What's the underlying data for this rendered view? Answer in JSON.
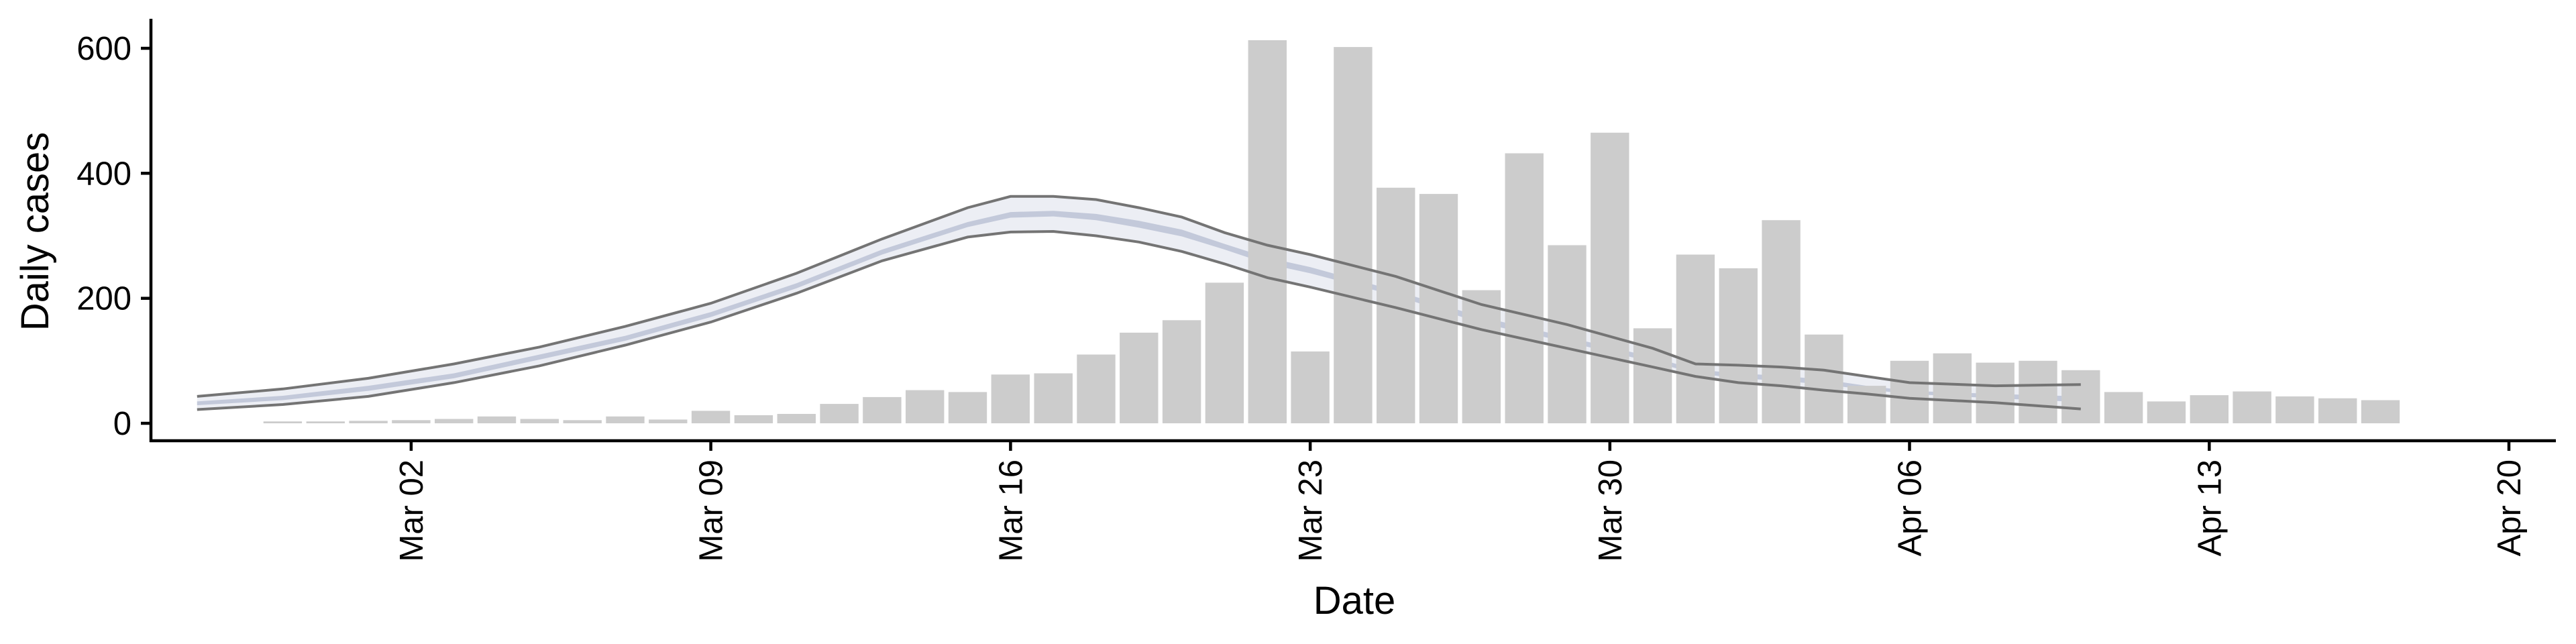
{
  "chart_data": {
    "type": "bar",
    "title": "",
    "xlabel": "Date",
    "ylabel": "Daily cases",
    "ylim": [
      0,
      640
    ],
    "xlim": [
      "2020-02-25",
      "2020-04-20"
    ],
    "x_ticks": [
      "2020-03-02",
      "2020-03-09",
      "2020-03-16",
      "2020-03-23",
      "2020-03-30",
      "2020-04-06",
      "2020-04-13",
      "2020-04-20"
    ],
    "x_tick_labels": [
      "Mar 02",
      "Mar 09",
      "Mar 16",
      "Mar 23",
      "Mar 30",
      "Apr 06",
      "Apr 13",
      "Apr 20"
    ],
    "y_ticks": [
      0,
      200,
      400,
      600
    ],
    "y_tick_labels": [
      "0",
      "200",
      "400",
      "600"
    ],
    "grid": false,
    "legend": "none",
    "colors": {
      "bars": "#cccccc",
      "band_outer": "#eceef4",
      "band_inner": "#c3c9da",
      "bound_lines": "#747474"
    },
    "series": [
      {
        "kind": "bar",
        "x": [
          "2020-02-28",
          "2020-02-29",
          "2020-03-01",
          "2020-03-02",
          "2020-03-03",
          "2020-03-04",
          "2020-03-05",
          "2020-03-06",
          "2020-03-07",
          "2020-03-08",
          "2020-03-09",
          "2020-03-10",
          "2020-03-11",
          "2020-03-12",
          "2020-03-13",
          "2020-03-14",
          "2020-03-15",
          "2020-03-16",
          "2020-03-17",
          "2020-03-18",
          "2020-03-19",
          "2020-03-20",
          "2020-03-21",
          "2020-03-22",
          "2020-03-23",
          "2020-03-24",
          "2020-03-25",
          "2020-03-26",
          "2020-03-27",
          "2020-03-28",
          "2020-03-29",
          "2020-03-30",
          "2020-03-31",
          "2020-04-01",
          "2020-04-02",
          "2020-04-03",
          "2020-04-04",
          "2020-04-05",
          "2020-04-06",
          "2020-04-07",
          "2020-04-08",
          "2020-04-09",
          "2020-04-10",
          "2020-04-11",
          "2020-04-12",
          "2020-04-13",
          "2020-04-14",
          "2020-04-15",
          "2020-04-16",
          "2020-04-17",
          "2020-04-18"
        ],
        "values": [
          3,
          3,
          4,
          5,
          7,
          11,
          7,
          5,
          11,
          6,
          20,
          13,
          15,
          31,
          42,
          53,
          50,
          78,
          80,
          110,
          145,
          165,
          225,
          613,
          115,
          602,
          377,
          367,
          213,
          432,
          285,
          465,
          152,
          270,
          248,
          325,
          142,
          60,
          100,
          112,
          97,
          100,
          85,
          50,
          35,
          45,
          51,
          43,
          40,
          37,
          0
        ]
      },
      {
        "kind": "band",
        "x": [
          "2020-02-26",
          "2020-02-28",
          "2020-03-01",
          "2020-03-03",
          "2020-03-05",
          "2020-03-07",
          "2020-03-09",
          "2020-03-11",
          "2020-03-13",
          "2020-03-15",
          "2020-03-16",
          "2020-03-17",
          "2020-03-18",
          "2020-03-19",
          "2020-03-20",
          "2020-03-21",
          "2020-03-22",
          "2020-03-23",
          "2020-03-25",
          "2020-03-27",
          "2020-03-29",
          "2020-03-31",
          "2020-04-01",
          "2020-04-02",
          "2020-04-03",
          "2020-04-04",
          "2020-04-05",
          "2020-04-06",
          "2020-04-08",
          "2020-04-10"
        ],
        "upper": [
          43,
          55,
          72,
          95,
          122,
          155,
          192,
          240,
          295,
          345,
          363,
          363,
          358,
          345,
          330,
          305,
          285,
          270,
          235,
          190,
          158,
          120,
          95,
          93,
          90,
          85,
          75,
          65,
          60,
          62
        ],
        "lower": [
          22,
          30,
          43,
          65,
          92,
          125,
          162,
          208,
          260,
          298,
          306,
          307,
          300,
          290,
          275,
          255,
          233,
          218,
          185,
          150,
          120,
          90,
          75,
          65,
          60,
          53,
          47,
          40,
          33,
          23
        ],
        "inner_upper": [
          35,
          44,
          60,
          80,
          110,
          140,
          178,
          224,
          278,
          322,
          338,
          340,
          335,
          324,
          310,
          287,
          265,
          250,
          212,
          170,
          138,
          106,
          86,
          80,
          76,
          70,
          60,
          52,
          47,
          43
        ],
        "inner_lower": [
          29,
          37,
          52,
          72,
          102,
          132,
          170,
          216,
          270,
          314,
          329,
          331,
          325,
          313,
          299,
          278,
          255,
          240,
          204,
          160,
          130,
          98,
          80,
          72,
          68,
          62,
          54,
          47,
          40,
          34
        ]
      }
    ]
  }
}
